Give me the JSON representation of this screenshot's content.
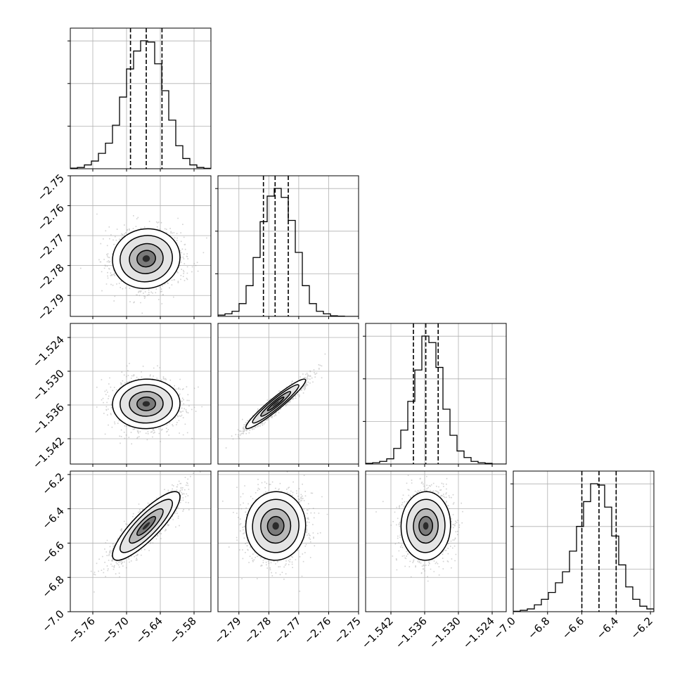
{
  "chart_data": {
    "type": "corner",
    "title": "",
    "parameters": [
      {
        "label": "",
        "range": [
          -5.8,
          -5.55
        ],
        "ticks": [
          -5.76,
          -5.7,
          -5.64,
          -5.58
        ],
        "tick_labels": [
          "−5.76",
          "−5.70",
          "−5.64",
          "−5.58"
        ],
        "quantiles": [
          -5.693,
          -5.665,
          -5.637
        ],
        "hist": [
          0.5,
          1.0,
          3.0,
          6.0,
          12.0,
          20.0,
          34.0,
          56.0,
          78.0,
          92.0,
          100.0,
          99.0,
          82.0,
          61.0,
          38.0,
          18.0,
          8.0,
          3.0,
          1.0,
          0.3
        ]
      },
      {
        "label": "",
        "range": [
          -2.797,
          -2.75
        ],
        "ticks": [
          -2.79,
          -2.78,
          -2.77,
          -2.76,
          -2.75
        ],
        "tick_labels": [
          "−2.79",
          "−2.78",
          "−2.77",
          "−2.76",
          "−2.75"
        ],
        "quantiles": [
          -2.7818,
          -2.7779,
          -2.7735
        ],
        "hist": [
          1.0,
          2.0,
          4.0,
          10.0,
          24.0,
          46.0,
          74.0,
          94.0,
          100.0,
          93.0,
          75.0,
          50.0,
          24.0,
          10.0,
          4.0,
          2.0,
          0.5,
          0.2,
          0.0,
          0.0
        ]
      },
      {
        "label": "",
        "range": [
          -1.5465,
          -1.5215
        ],
        "ticks": [
          -1.542,
          -1.536,
          -1.53,
          -1.524
        ],
        "tick_labels": [
          "−1.542",
          "−1.536",
          "−1.530",
          "−1.524"
        ],
        "quantiles": [
          -1.538,
          -1.5358,
          -1.5336
        ],
        "hist": [
          0.5,
          1.0,
          2.0,
          4.0,
          12.0,
          26.0,
          48.0,
          72.0,
          98.0,
          93.0,
          74.0,
          42.0,
          22.0,
          10.0,
          5.0,
          2.0,
          1.0,
          0.5,
          0.0,
          0.0
        ]
      },
      {
        "label": "",
        "range": [
          -7.0,
          -6.18
        ],
        "ticks": [
          -7.0,
          -6.8,
          -6.6,
          -6.4,
          -6.2
        ],
        "tick_labels": [
          "−7.0",
          "−6.8",
          "−6.6",
          "−6.4",
          "−6.2"
        ],
        "quantiles": [
          -6.6,
          -6.5,
          -6.4
        ],
        "hist": [
          0.3,
          1.0,
          2.0,
          5.0,
          9.0,
          14.0,
          21.0,
          29.0,
          44.0,
          62.0,
          80.0,
          93.0,
          92.0,
          76.0,
          55.0,
          34.0,
          18.0,
          9.0,
          4.0,
          2.0
        ]
      }
    ],
    "means": [
      -5.665,
      -2.7777,
      -1.5358,
      -6.5
    ],
    "stds": [
      0.03,
      0.005,
      0.0022,
      0.1
    ],
    "correlations": [
      [
        1.0,
        0.05,
        0.02,
        0.85
      ],
      [
        0.05,
        1.0,
        0.95,
        0.02
      ],
      [
        0.02,
        0.95,
        1.0,
        0.02
      ],
      [
        0.85,
        0.02,
        0.02,
        1.0
      ]
    ],
    "grid": true
  }
}
